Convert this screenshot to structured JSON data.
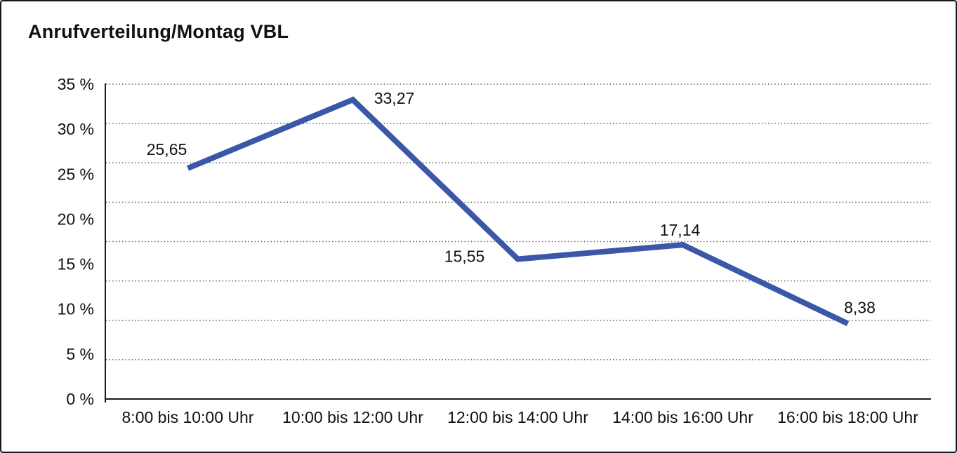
{
  "title": "Anrufverteilung/Montag VBL",
  "chart_data": {
    "type": "line",
    "title": "Anrufverteilung/Montag VBL",
    "categories": [
      "8:00 bis 10:00 Uhr",
      "10:00 bis 12:00 Uhr",
      "12:00 bis 14:00 Uhr",
      "14:00 bis 16:00 Uhr",
      "16:00 bis 18:00 Uhr"
    ],
    "values": [
      25.65,
      33.27,
      15.55,
      17.14,
      8.38
    ],
    "data_labels": [
      "25,65",
      "33,27",
      "15,55",
      "17,14",
      "8,38"
    ],
    "xlabel": "",
    "ylabel": "",
    "ylim": [
      0,
      35
    ],
    "y_tick_step": 5,
    "y_tick_labels": [
      "0 %",
      "5 %",
      "10 %",
      "15 %",
      "20 %",
      "25 %",
      "30 %",
      "35 %"
    ],
    "gridline_divisions": 8,
    "grid": "horizontal-dotted",
    "legend": "none",
    "colors": {
      "line": "#3A58A7",
      "axis": "#1a1a1a",
      "gridline": "#555555",
      "text": "#111111"
    }
  }
}
